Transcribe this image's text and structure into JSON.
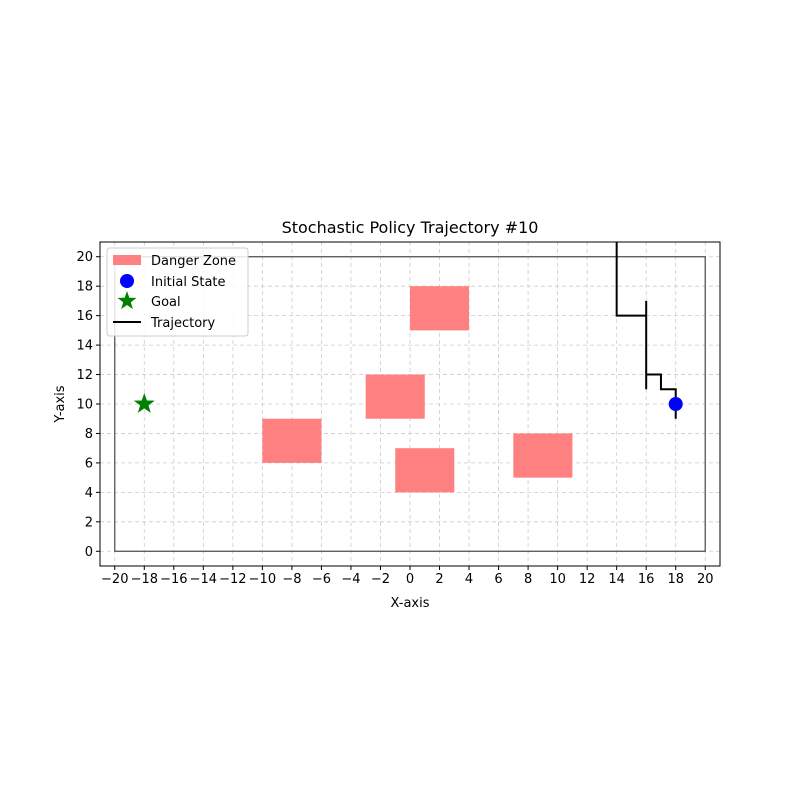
{
  "chart_data": {
    "type": "line",
    "title": "Stochastic Policy Trajectory #10",
    "xlabel": "X-axis",
    "ylabel": "Y-axis",
    "xlim": [
      -21,
      21
    ],
    "ylim": [
      -1,
      21
    ],
    "xticks": [
      -20,
      -18,
      -16,
      -14,
      -12,
      -10,
      -8,
      -6,
      -4,
      -2,
      0,
      2,
      4,
      6,
      8,
      10,
      12,
      14,
      16,
      18,
      20
    ],
    "yticks": [
      0,
      2,
      4,
      6,
      8,
      10,
      12,
      14,
      16,
      18,
      20
    ],
    "grid": true,
    "legend_position": "top-left",
    "legend": {
      "danger_zone": "Danger Zone",
      "initial_state": "Initial State",
      "goal": "Goal",
      "trajectory": "Trajectory"
    },
    "boundary": {
      "x": [
        -20,
        20
      ],
      "y": [
        0,
        20
      ]
    },
    "danger_zones": [
      {
        "x": 0,
        "y": 15,
        "width": 4,
        "height": 3
      },
      {
        "x": -3,
        "y": 9,
        "width": 4,
        "height": 3
      },
      {
        "x": -10,
        "y": 6,
        "width": 4,
        "height": 3
      },
      {
        "x": -1,
        "y": 4,
        "width": 4,
        "height": 3
      },
      {
        "x": 7,
        "y": 5,
        "width": 4,
        "height": 3
      }
    ],
    "initial_state": {
      "x": 18,
      "y": 10
    },
    "goal": {
      "x": -18,
      "y": 10
    },
    "trajectory": [
      {
        "x": 18,
        "y": 10
      },
      {
        "x": 18,
        "y": 9
      },
      {
        "x": 18,
        "y": 11
      },
      {
        "x": 17,
        "y": 11
      },
      {
        "x": 17,
        "y": 12
      },
      {
        "x": 16,
        "y": 12
      },
      {
        "x": 16,
        "y": 11
      },
      {
        "x": 16,
        "y": 17
      },
      {
        "x": 16,
        "y": 16
      },
      {
        "x": 14,
        "y": 16
      },
      {
        "x": 14,
        "y": 21
      }
    ],
    "colors": {
      "danger_zone": "#ff8080",
      "initial_state": "#0000ff",
      "goal": "#008000",
      "trajectory": "#000000",
      "boundary": "#555555",
      "grid": "#cccccc"
    }
  }
}
